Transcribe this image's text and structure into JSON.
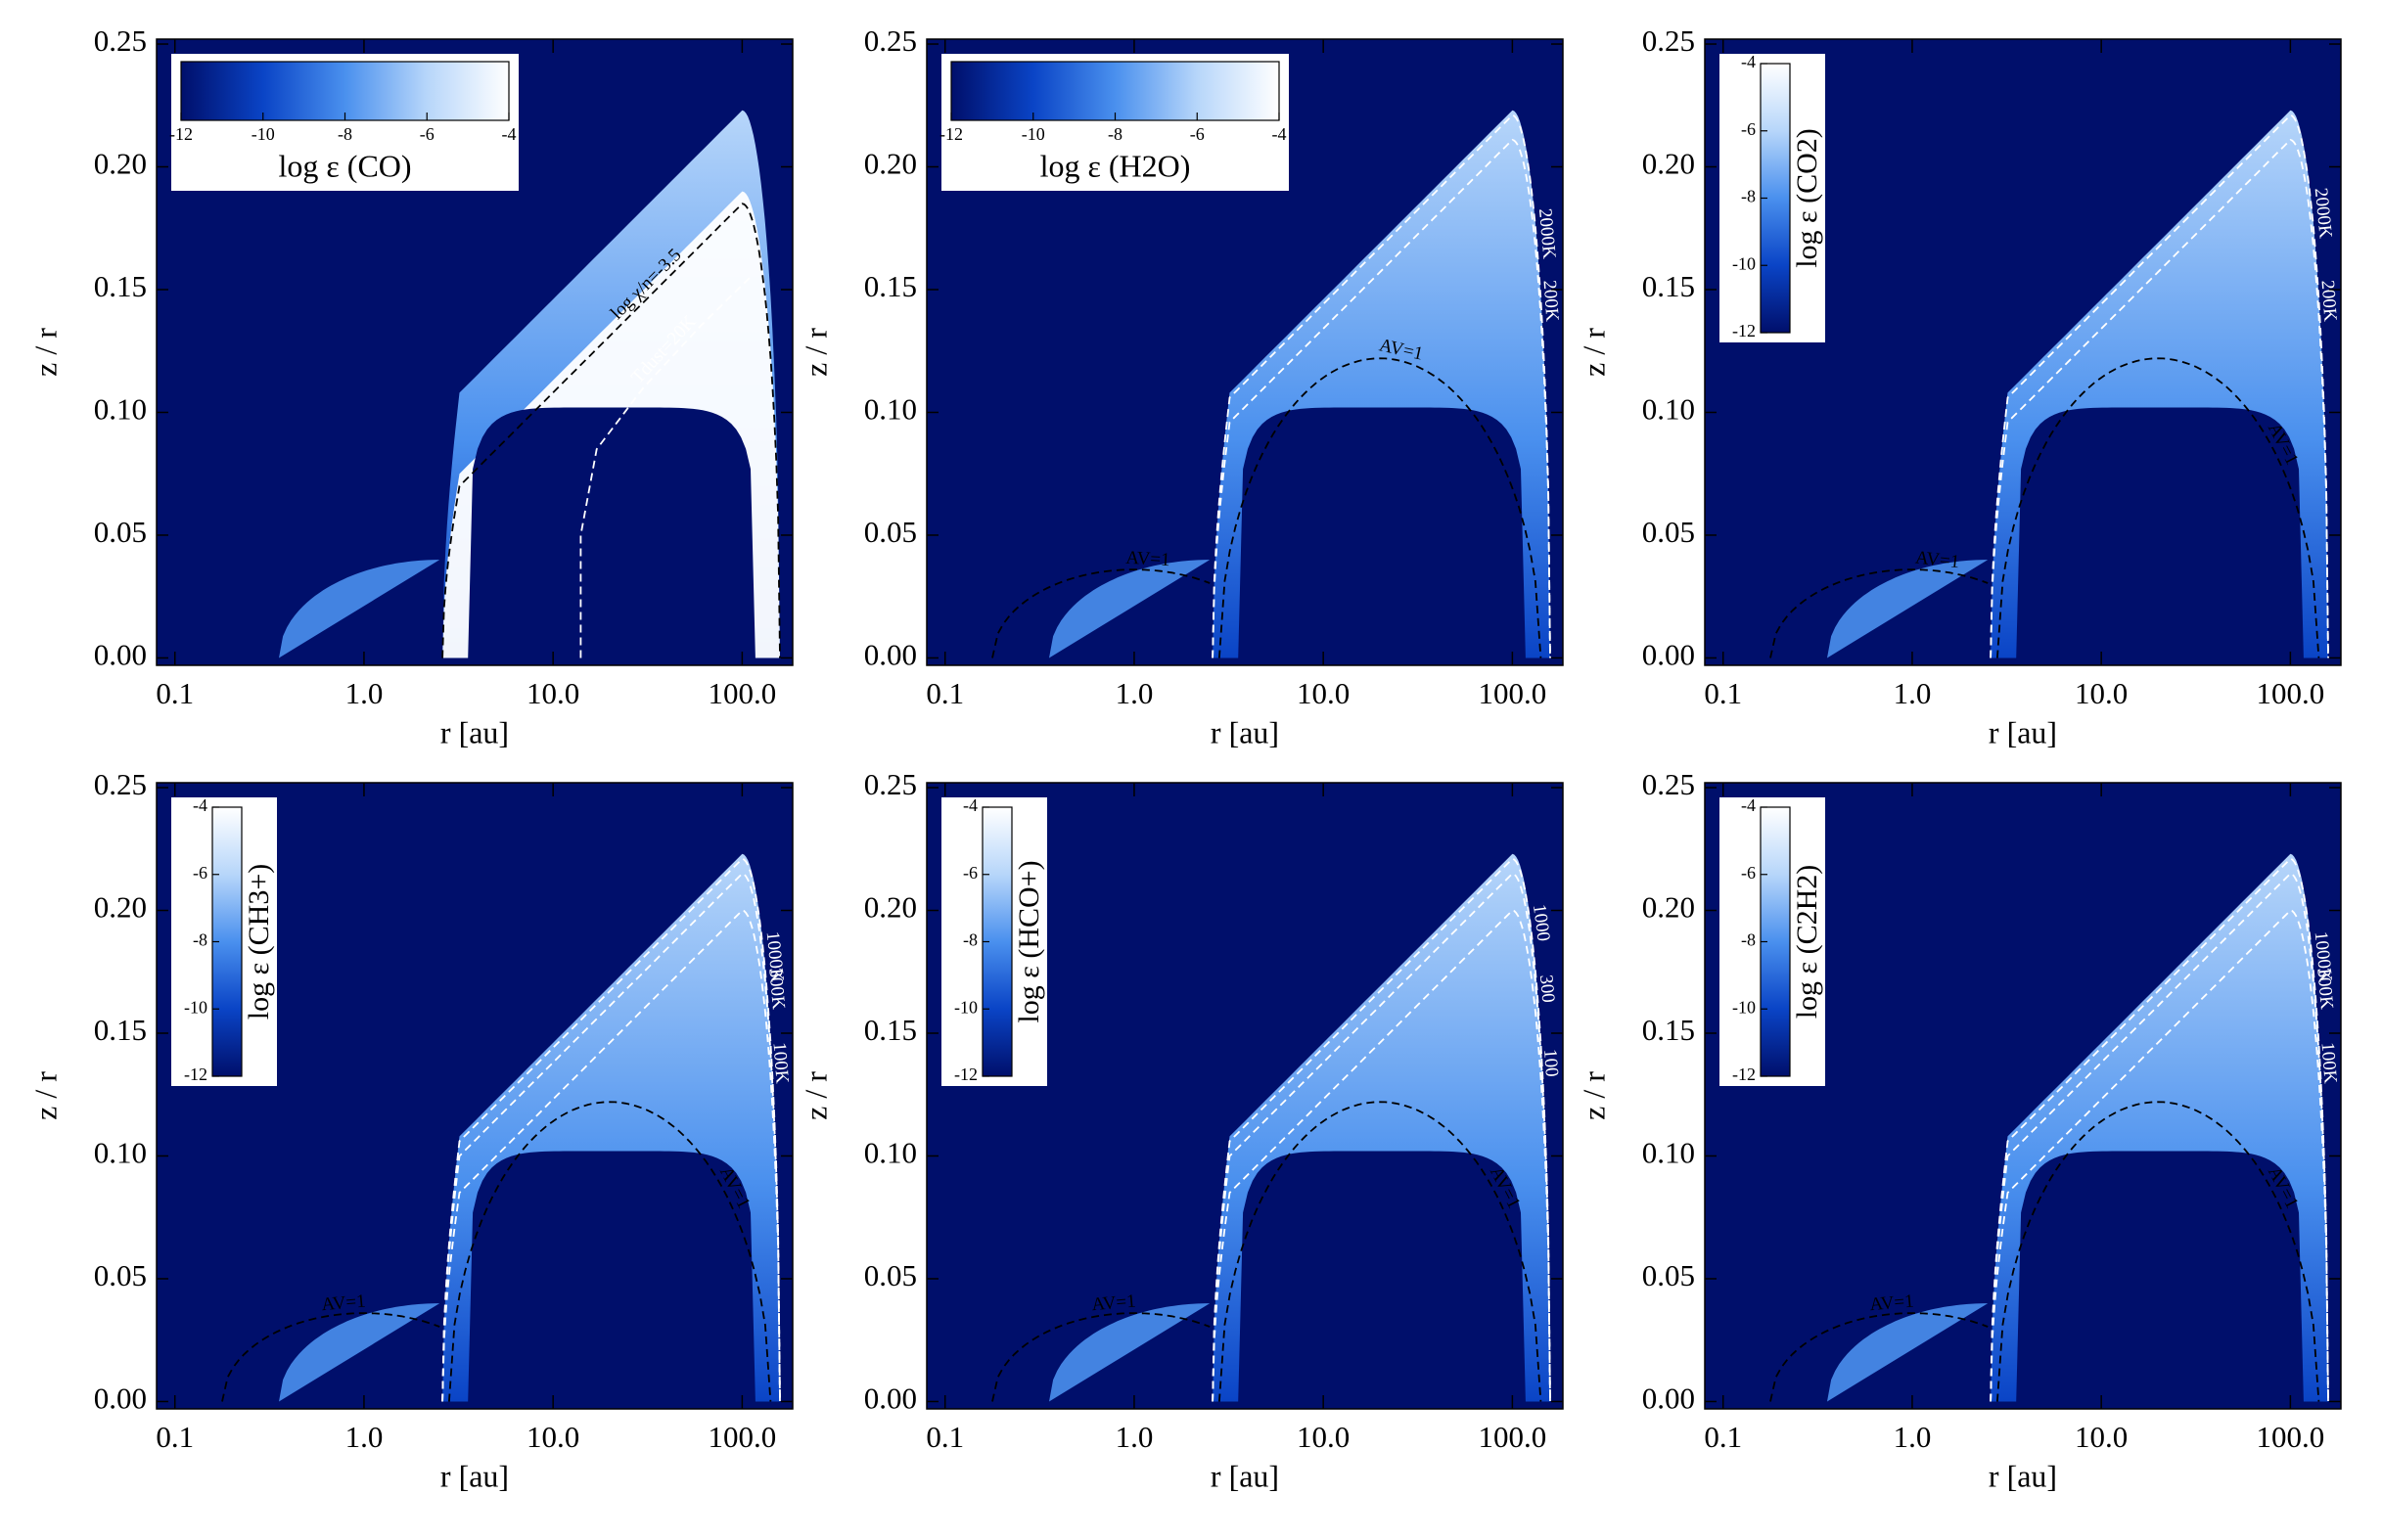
{
  "chart_data": [
    {
      "type": "heatmap",
      "colorbar_label": "log ε (CO)",
      "colorbar_orientation": "horizontal",
      "clim": [
        -12,
        -4
      ],
      "cticks": [
        -12,
        -10,
        -8,
        -6,
        -4
      ],
      "xlabel": "r [au]",
      "ylabel": "z / r",
      "xscale": "log",
      "xlim": [
        0.08,
        185
      ],
      "ylim": [
        -0.003,
        0.252
      ],
      "xticks": [
        0.1,
        {
          "value": 1,
          "label": "1.0"
        },
        {
          "value": 10,
          "label": "10.0"
        },
        {
          "value": 100,
          "label": "100.0"
        }
      ],
      "yticks": [
        {
          "value": 0,
          "label": "0.00"
        },
        0.05,
        {
          "value": 0.1,
          "label": "0.10"
        },
        0.15,
        {
          "value": 0.2,
          "label": "0.20"
        },
        0.25
      ],
      "colormap": [
        "#000f6b",
        "#0a44c6",
        "#4a90ee",
        "#b7d6fa",
        "#ffffff"
      ],
      "contours": [
        {
          "label": "log χ/n=-3.5",
          "color": "black"
        },
        {
          "label": "Tdust=20K",
          "color": "white"
        }
      ]
    },
    {
      "type": "heatmap",
      "colorbar_label": "log ε (H2O)",
      "colorbar_orientation": "horizontal",
      "clim": [
        -12,
        -4
      ],
      "cticks": [
        -12,
        -10,
        -8,
        -6,
        -4
      ],
      "xlabel": "r [au]",
      "ylabel": "z / r",
      "xscale": "log",
      "xlim": [
        0.08,
        185
      ],
      "ylim": [
        -0.003,
        0.252
      ],
      "xticks": [
        0.1,
        {
          "value": 1,
          "label": "1.0"
        },
        {
          "value": 10,
          "label": "10.0"
        },
        {
          "value": 100,
          "label": "100.0"
        }
      ],
      "yticks": [
        {
          "value": 0,
          "label": "0.00"
        },
        0.05,
        {
          "value": 0.1,
          "label": "0.10"
        },
        0.15,
        {
          "value": 0.2,
          "label": "0.20"
        },
        0.25
      ],
      "colormap": [
        "#000f6b",
        "#0a44c6",
        "#4a90ee",
        "#b7d6fa",
        "#ffffff"
      ],
      "contours": [
        {
          "label": "2000K",
          "color": "white"
        },
        {
          "label": "200K",
          "color": "white"
        },
        {
          "label": "AV=1",
          "color": "black"
        },
        {
          "label": "AV=1",
          "color": "black"
        }
      ]
    },
    {
      "type": "heatmap",
      "colorbar_label": "log ε (CO2)",
      "colorbar_orientation": "vertical",
      "clim": [
        -12,
        -4
      ],
      "cticks": [
        -12,
        -10,
        -8,
        -6,
        -4
      ],
      "xlabel": "r [au]",
      "ylabel": "z / r",
      "xscale": "log",
      "xlim": [
        0.08,
        185
      ],
      "ylim": [
        -0.003,
        0.252
      ],
      "xticks": [
        0.1,
        {
          "value": 1,
          "label": "1.0"
        },
        {
          "value": 10,
          "label": "10.0"
        },
        {
          "value": 100,
          "label": "100.0"
        }
      ],
      "yticks": [
        {
          "value": 0,
          "label": "0.00"
        },
        0.05,
        {
          "value": 0.1,
          "label": "0.10"
        },
        0.15,
        {
          "value": 0.2,
          "label": "0.20"
        },
        0.25
      ],
      "colormap": [
        "#000f6b",
        "#0a44c6",
        "#4a90ee",
        "#b7d6fa",
        "#ffffff"
      ],
      "contours": [
        {
          "label": "2000K",
          "color": "white"
        },
        {
          "label": "200K",
          "color": "white"
        },
        {
          "label": "AV=1",
          "color": "black"
        },
        {
          "label": "AV=1",
          "color": "black"
        }
      ]
    },
    {
      "type": "heatmap",
      "colorbar_label": "log ε (CH3+)",
      "colorbar_orientation": "vertical",
      "clim": [
        -12,
        -4
      ],
      "cticks": [
        -12,
        -10,
        -8,
        -6,
        -4
      ],
      "xlabel": "r [au]",
      "ylabel": "z / r",
      "xscale": "log",
      "xlim": [
        0.08,
        185
      ],
      "ylim": [
        -0.003,
        0.252
      ],
      "xticks": [
        0.1,
        {
          "value": 1,
          "label": "1.0"
        },
        {
          "value": 10,
          "label": "10.0"
        },
        {
          "value": 100,
          "label": "100.0"
        }
      ],
      "yticks": [
        {
          "value": 0,
          "label": "0.00"
        },
        0.05,
        {
          "value": 0.1,
          "label": "0.10"
        },
        0.15,
        {
          "value": 0.2,
          "label": "0.20"
        },
        0.25
      ],
      "colormap": [
        "#000f6b",
        "#0a44c6",
        "#4a90ee",
        "#b7d6fa",
        "#ffffff"
      ],
      "contours": [
        {
          "label": "1000K",
          "color": "white"
        },
        {
          "label": "300K",
          "color": "white"
        },
        {
          "label": "100K",
          "color": "white"
        },
        {
          "label": "AV=1",
          "color": "black"
        },
        {
          "label": "AV=1",
          "color": "black"
        }
      ]
    },
    {
      "type": "heatmap",
      "colorbar_label": "log ε (HCO+)",
      "colorbar_orientation": "vertical",
      "clim": [
        -12,
        -4
      ],
      "cticks": [
        -12,
        -10,
        -8,
        -6,
        -4
      ],
      "xlabel": "r [au]",
      "ylabel": "z / r",
      "xscale": "log",
      "xlim": [
        0.08,
        185
      ],
      "ylim": [
        -0.003,
        0.252
      ],
      "xticks": [
        0.1,
        {
          "value": 1,
          "label": "1.0"
        },
        {
          "value": 10,
          "label": "10.0"
        },
        {
          "value": 100,
          "label": "100.0"
        }
      ],
      "yticks": [
        {
          "value": 0,
          "label": "0.00"
        },
        0.05,
        {
          "value": 0.1,
          "label": "0.10"
        },
        0.15,
        {
          "value": 0.2,
          "label": "0.20"
        },
        0.25
      ],
      "colormap": [
        "#000f6b",
        "#0a44c6",
        "#4a90ee",
        "#b7d6fa",
        "#ffffff"
      ],
      "contours": [
        {
          "label": "1000",
          "color": "white"
        },
        {
          "label": "300",
          "color": "white"
        },
        {
          "label": "100",
          "color": "white"
        },
        {
          "label": "AV=1",
          "color": "black"
        },
        {
          "label": "AV=1",
          "color": "black"
        }
      ]
    },
    {
      "type": "heatmap",
      "colorbar_label": "log ε (C2H2)",
      "colorbar_orientation": "vertical",
      "clim": [
        -12,
        -4
      ],
      "cticks": [
        -12,
        -10,
        -8,
        -6,
        -4
      ],
      "xlabel": "r [au]",
      "ylabel": "z / r",
      "xscale": "log",
      "xlim": [
        0.08,
        185
      ],
      "ylim": [
        -0.003,
        0.252
      ],
      "xticks": [
        0.1,
        {
          "value": 1,
          "label": "1.0"
        },
        {
          "value": 10,
          "label": "10.0"
        },
        {
          "value": 100,
          "label": "100.0"
        }
      ],
      "yticks": [
        {
          "value": 0,
          "label": "0.00"
        },
        0.05,
        {
          "value": 0.1,
          "label": "0.10"
        },
        0.15,
        {
          "value": 0.2,
          "label": "0.20"
        },
        0.25
      ],
      "colormap": [
        "#000f6b",
        "#0a44c6",
        "#4a90ee",
        "#b7d6fa",
        "#ffffff"
      ],
      "contours": [
        {
          "label": "1000K",
          "color": "white"
        },
        {
          "label": "300K",
          "color": "white"
        },
        {
          "label": "100K",
          "color": "white"
        },
        {
          "label": "AV=1",
          "color": "black"
        },
        {
          "label": "AV=1",
          "color": "black"
        }
      ]
    }
  ]
}
